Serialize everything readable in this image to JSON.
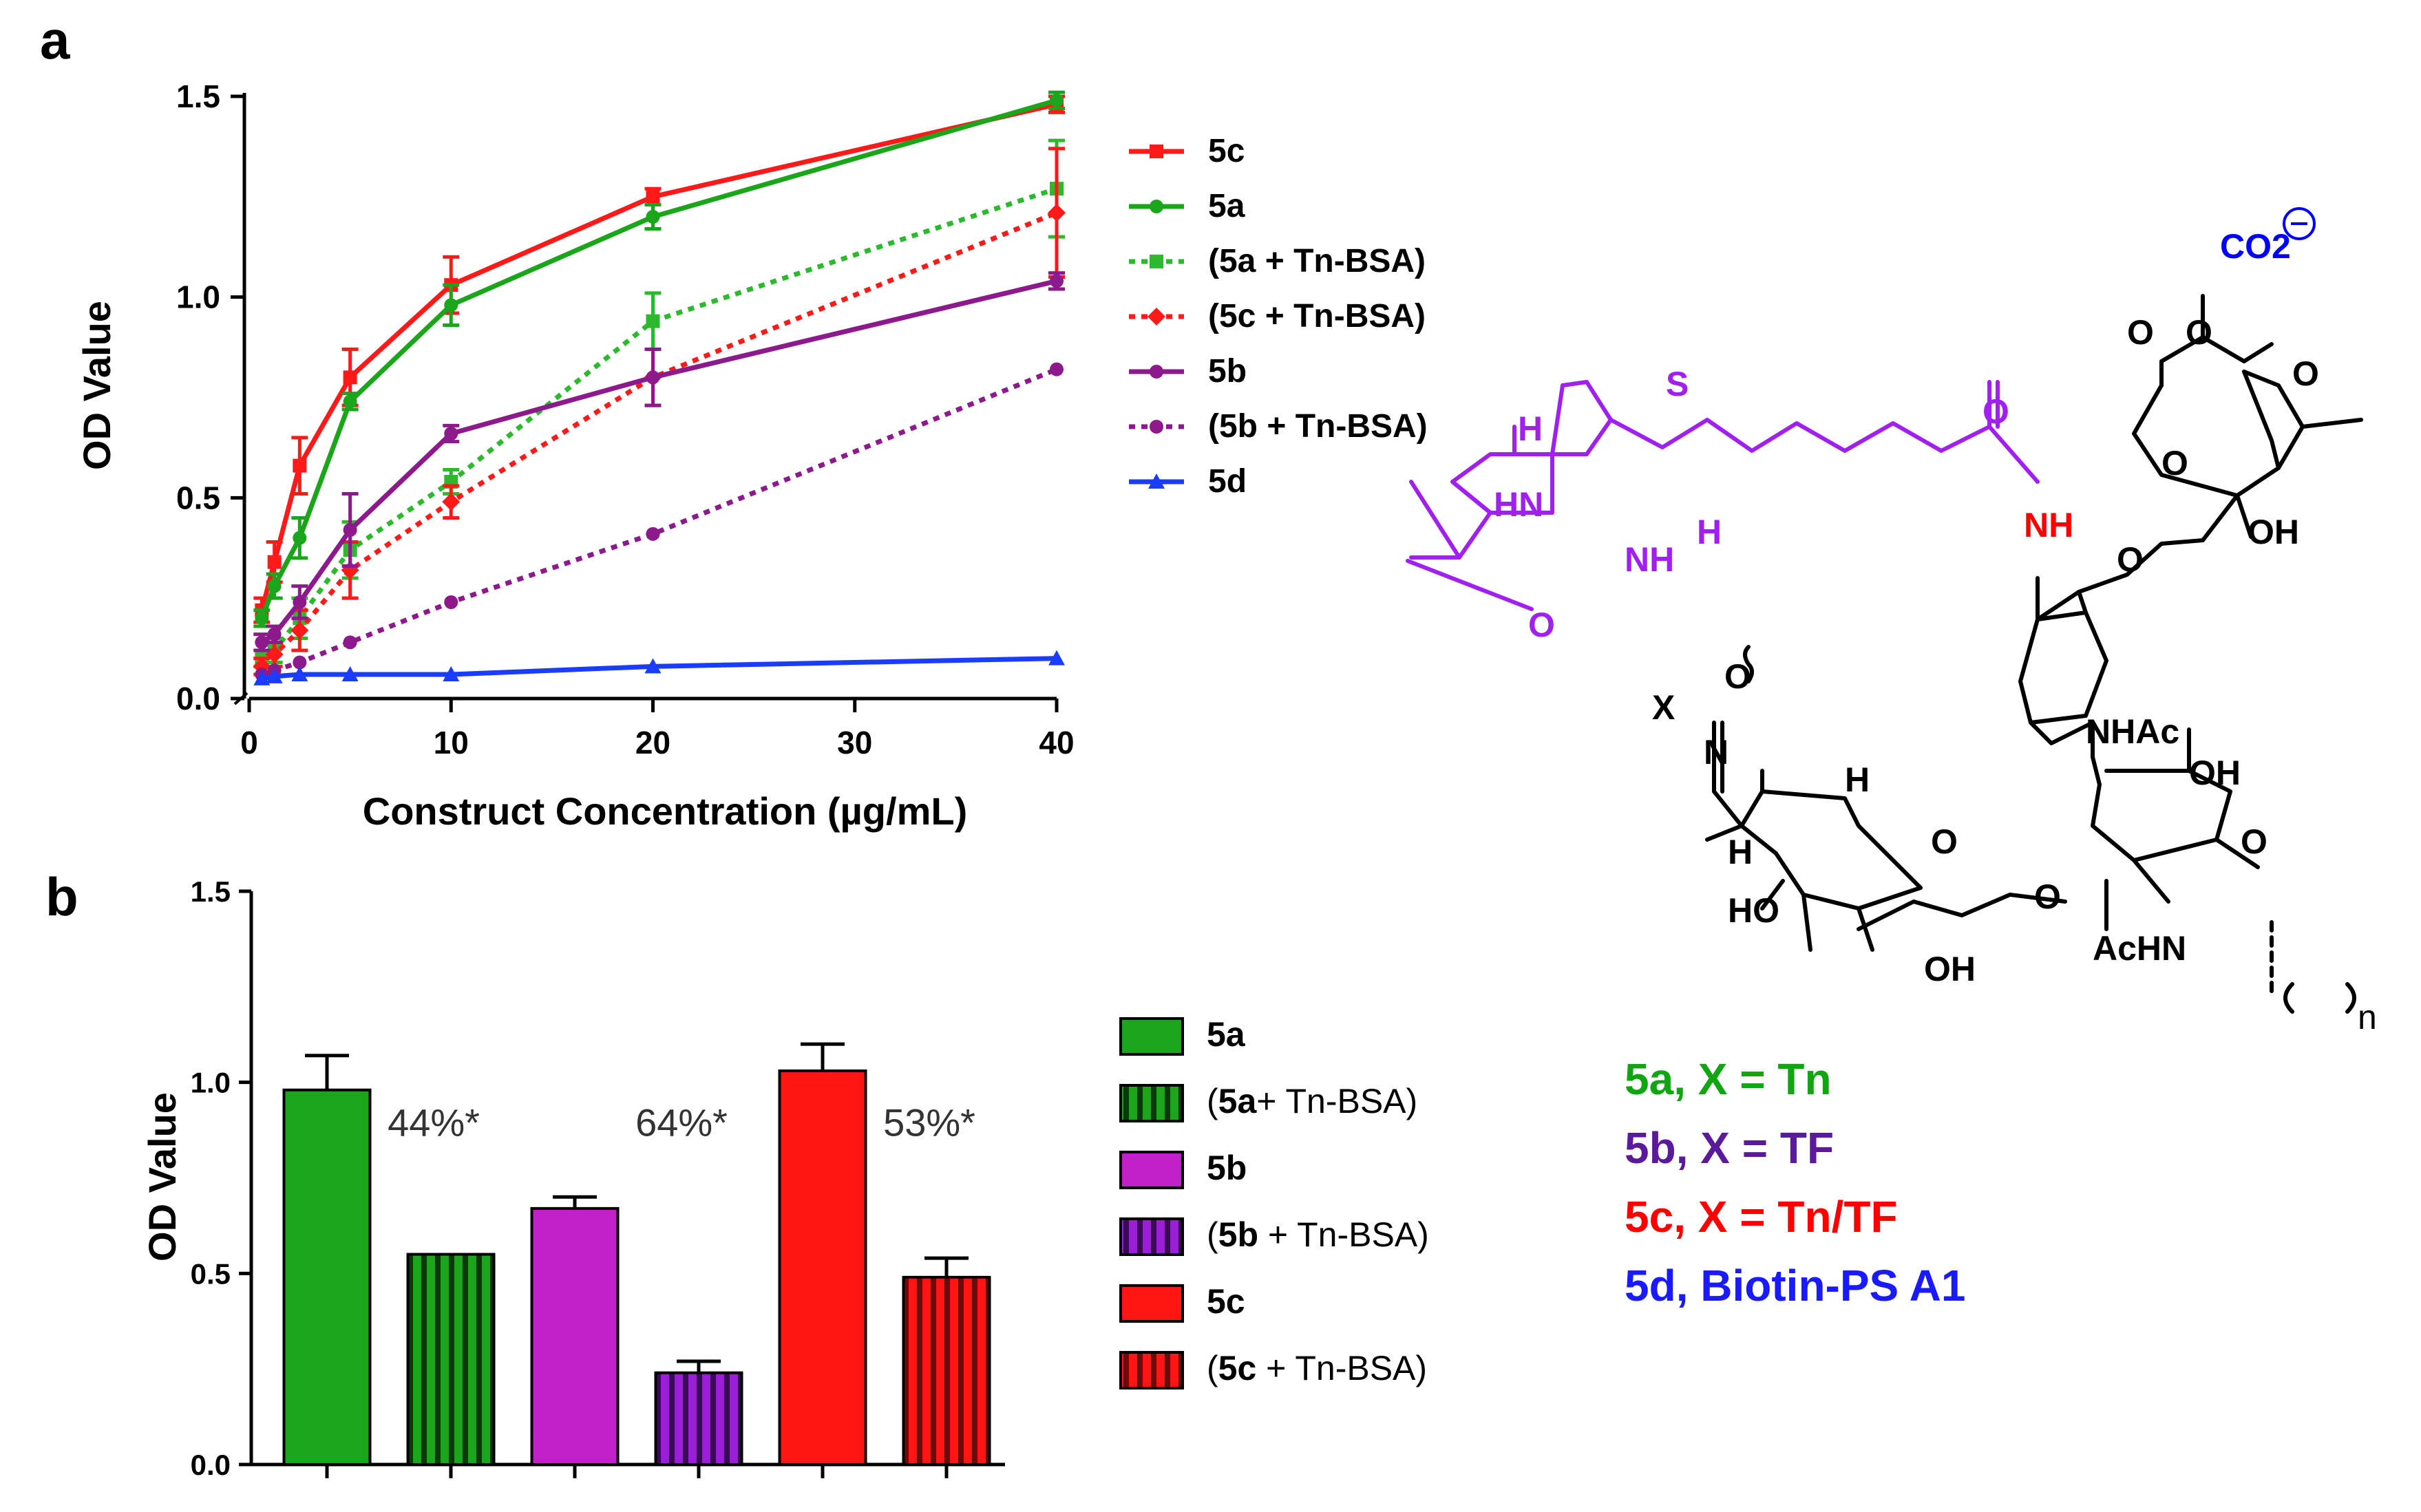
{
  "chart_data": [
    {
      "panel": "a",
      "type": "line",
      "xlabel": "Construct Concentration (µg/mL)",
      "ylabel": "OD Value",
      "xlim": [
        0,
        40
      ],
      "ylim": [
        0,
        1.5
      ],
      "x_ticks": [
        0,
        10,
        20,
        30,
        40
      ],
      "x_tick_labels": [
        "0",
        "10",
        "20",
        "30",
        "40"
      ],
      "y_ticks": [
        0,
        0.5,
        1.0,
        1.5
      ],
      "y_tick_labels": [
        "0.0",
        "0.5",
        "1.0",
        "1.5"
      ],
      "x_axis_broken": true,
      "legend_position": "right",
      "x": [
        0.625,
        1.25,
        2.5,
        5,
        10,
        20,
        40
      ],
      "series": [
        {
          "name": "5c",
          "bold": "5c",
          "rest": "",
          "color": "#ff1a1a",
          "dashed": false,
          "marker": "square",
          "values": [
            0.22,
            0.34,
            0.58,
            0.8,
            1.03,
            1.25,
            1.48
          ],
          "errors": [
            0.03,
            0.05,
            0.07,
            0.07,
            0.07,
            0.02,
            0.02
          ]
        },
        {
          "name": "5a",
          "bold": "5a",
          "rest": "",
          "color": "#1aa51a",
          "dashed": false,
          "marker": "circle",
          "values": [
            0.2,
            0.28,
            0.4,
            0.74,
            0.98,
            1.2,
            1.49
          ],
          "errors": [
            0.02,
            0.03,
            0.05,
            0.02,
            0.05,
            0.03,
            0.02
          ]
        },
        {
          "name": "(5a + Tn-BSA)",
          "bold": "(5a + Tn-BSA)",
          "rest": "",
          "color": "#2eb82e",
          "dashed": true,
          "marker": "square",
          "values": [
            0.1,
            0.12,
            0.2,
            0.37,
            0.54,
            0.94,
            1.27
          ],
          "errors": [
            0.02,
            0.03,
            0.05,
            0.07,
            0.03,
            0.07,
            0.12
          ]
        },
        {
          "name": "(5c + Tn-BSA)",
          "bold": "(5c + Tn-BSA)",
          "rest": "",
          "color": "#ff1a1a",
          "dashed": true,
          "marker": "diamond",
          "values": [
            0.08,
            0.11,
            0.17,
            0.32,
            0.49,
            0.8,
            1.21
          ],
          "errors": [
            0.02,
            0.03,
            0.05,
            0.07,
            0.04,
            0.07,
            0.16
          ]
        },
        {
          "name": "5b",
          "bold": "5b",
          "rest": "",
          "color": "#8c1a8c",
          "dashed": false,
          "marker": "circle",
          "values": [
            0.14,
            0.16,
            0.24,
            0.42,
            0.66,
            0.8,
            1.04
          ],
          "errors": [
            0.02,
            0.02,
            0.04,
            0.09,
            0.02,
            0.07,
            0.02
          ]
        },
        {
          "name": "(5b + Tn-BSA)",
          "bold": "(5b + Tn-BSA)",
          "rest": "",
          "color": "#8c1a8c",
          "dashed": true,
          "marker": "circle",
          "values": [
            0.06,
            0.07,
            0.09,
            0.14,
            0.24,
            0.41,
            0.82
          ],
          "errors": [
            0.01,
            0.01,
            0.01,
            0.01,
            0.01,
            0.01,
            0.01
          ]
        },
        {
          "name": "5d",
          "bold": "5d",
          "rest": "",
          "color": "#1a3cff",
          "dashed": false,
          "marker": "triangle",
          "values": [
            0.05,
            0.055,
            0.06,
            0.06,
            0.06,
            0.08,
            0.1
          ],
          "errors": [
            0.01,
            0.01,
            0.01,
            0.01,
            0.01,
            0.01,
            0.01
          ]
        }
      ]
    },
    {
      "panel": "b",
      "type": "bar",
      "ylabel": "OD Value",
      "ylim": [
        0,
        1.5
      ],
      "y_ticks": [
        0,
        0.5,
        1.0,
        1.5
      ],
      "y_tick_labels": [
        "0.0",
        "0.5",
        "1.0",
        "1.5"
      ],
      "legend_position": "right",
      "categories": [
        "5a",
        "(5a+ Tn-BSA)",
        "5b",
        "(5b + Tn-BSA)",
        "5c",
        "(5c + Tn-BSA)"
      ],
      "bars": [
        {
          "name": "5a",
          "value": 0.98,
          "error": 0.09,
          "color": "#1aa51a",
          "hatched": false,
          "legend_open": "",
          "legend_bold": "5a",
          "legend_rest": ""
        },
        {
          "name": "(5a+ Tn-BSA)",
          "value": 0.55,
          "error": 0.0,
          "color": "#1aa51a",
          "hatched": true,
          "legend_open": "(",
          "legend_bold": "5a",
          "legend_rest": "+ Tn-BSA)"
        },
        {
          "name": "5b",
          "value": 0.67,
          "error": 0.03,
          "color": "#c020c8",
          "hatched": false,
          "legend_open": "",
          "legend_bold": "5b",
          "legend_rest": ""
        },
        {
          "name": "(5b + Tn-BSA)",
          "value": 0.24,
          "error": 0.03,
          "color": "#9b1fd8",
          "hatched": true,
          "legend_open": "(",
          "legend_bold": "5b",
          "legend_rest": " + Tn-BSA)"
        },
        {
          "name": "5c",
          "value": 1.03,
          "error": 0.07,
          "color": "#ff1414",
          "hatched": false,
          "legend_open": "",
          "legend_bold": "5c",
          "legend_rest": ""
        },
        {
          "name": "(5c + Tn-BSA)",
          "value": 0.49,
          "error": 0.05,
          "color": "#ff1414",
          "hatched": true,
          "legend_open": "(",
          "legend_bold": "5c",
          "legend_rest": " + Tn-BSA)"
        }
      ],
      "annotations": [
        {
          "text": "44%*",
          "between": [
            0,
            1
          ]
        },
        {
          "text": "64%*",
          "between": [
            2,
            3
          ]
        },
        {
          "text": "53%*",
          "between": [
            4,
            5
          ]
        }
      ]
    }
  ],
  "panel_labels": {
    "a": "a",
    "b": "b"
  },
  "structure": {
    "labels": [
      "CO2",
      "O",
      "O",
      "O",
      "O",
      "OH",
      "O",
      "NH",
      "O",
      "H",
      "H",
      "HN",
      "NH",
      "O",
      "S",
      "X",
      "O",
      "N",
      "H",
      "H",
      "O",
      "O",
      "HO",
      "OH",
      "NHAc",
      "OH",
      "O",
      "O",
      "AcHN",
      "n"
    ],
    "colors": {
      "purple": "#a020f0",
      "red": "#ff0000",
      "blue": "#0000ff",
      "black": "#000000"
    }
  },
  "compound_key": [
    {
      "text": "5a, X = Tn",
      "color": "#11a511"
    },
    {
      "text": "5b, X = TF",
      "color": "#5a1a9a"
    },
    {
      "text": "5c, X = Tn/TF",
      "color": "#ff0000"
    },
    {
      "text": "5d, Biotin-PS A1",
      "color": "#1a1aff"
    }
  ]
}
